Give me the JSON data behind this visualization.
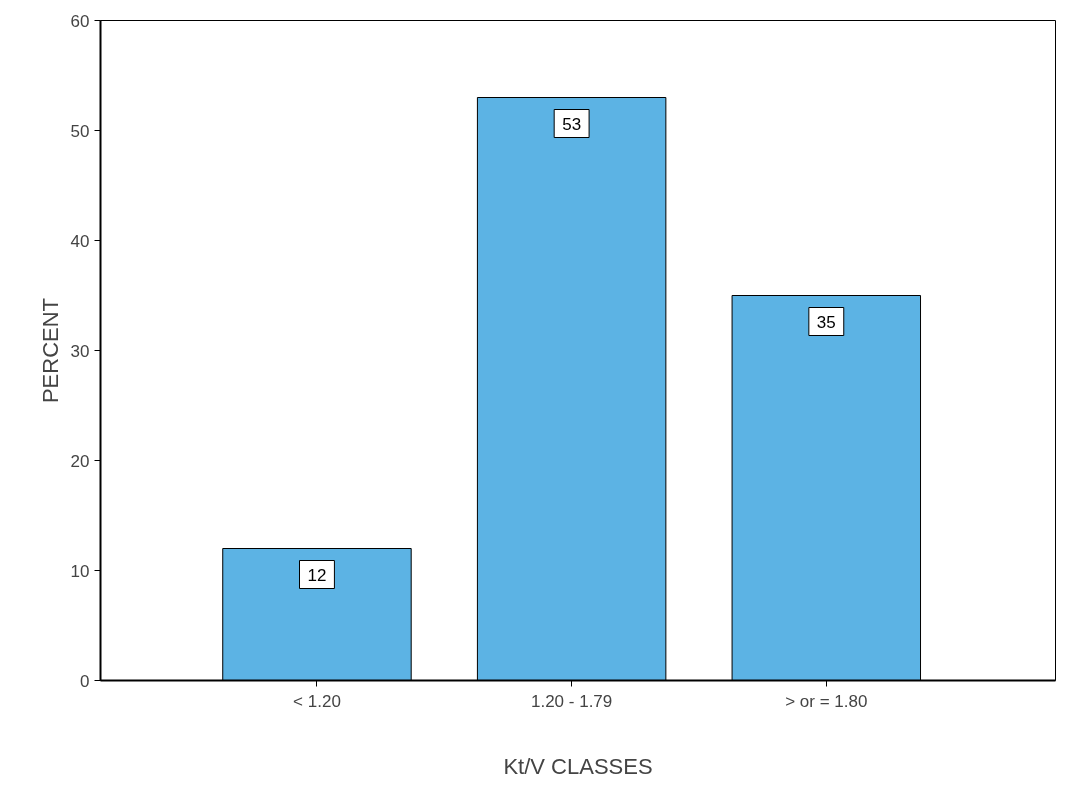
{
  "chart_data": {
    "type": "bar",
    "xlabel": "Kt/V CLASSES",
    "ylabel": "PERCENT",
    "categories": [
      "< 1.20",
      "1.20 - 1.79",
      "> or = 1.80"
    ],
    "values": [
      12,
      53,
      35
    ],
    "color": "#5cb3e4",
    "ylim": [
      0,
      60
    ],
    "yticks": [
      0,
      10,
      20,
      30,
      40,
      50,
      60
    ],
    "data_labels": true,
    "grid": false
  }
}
